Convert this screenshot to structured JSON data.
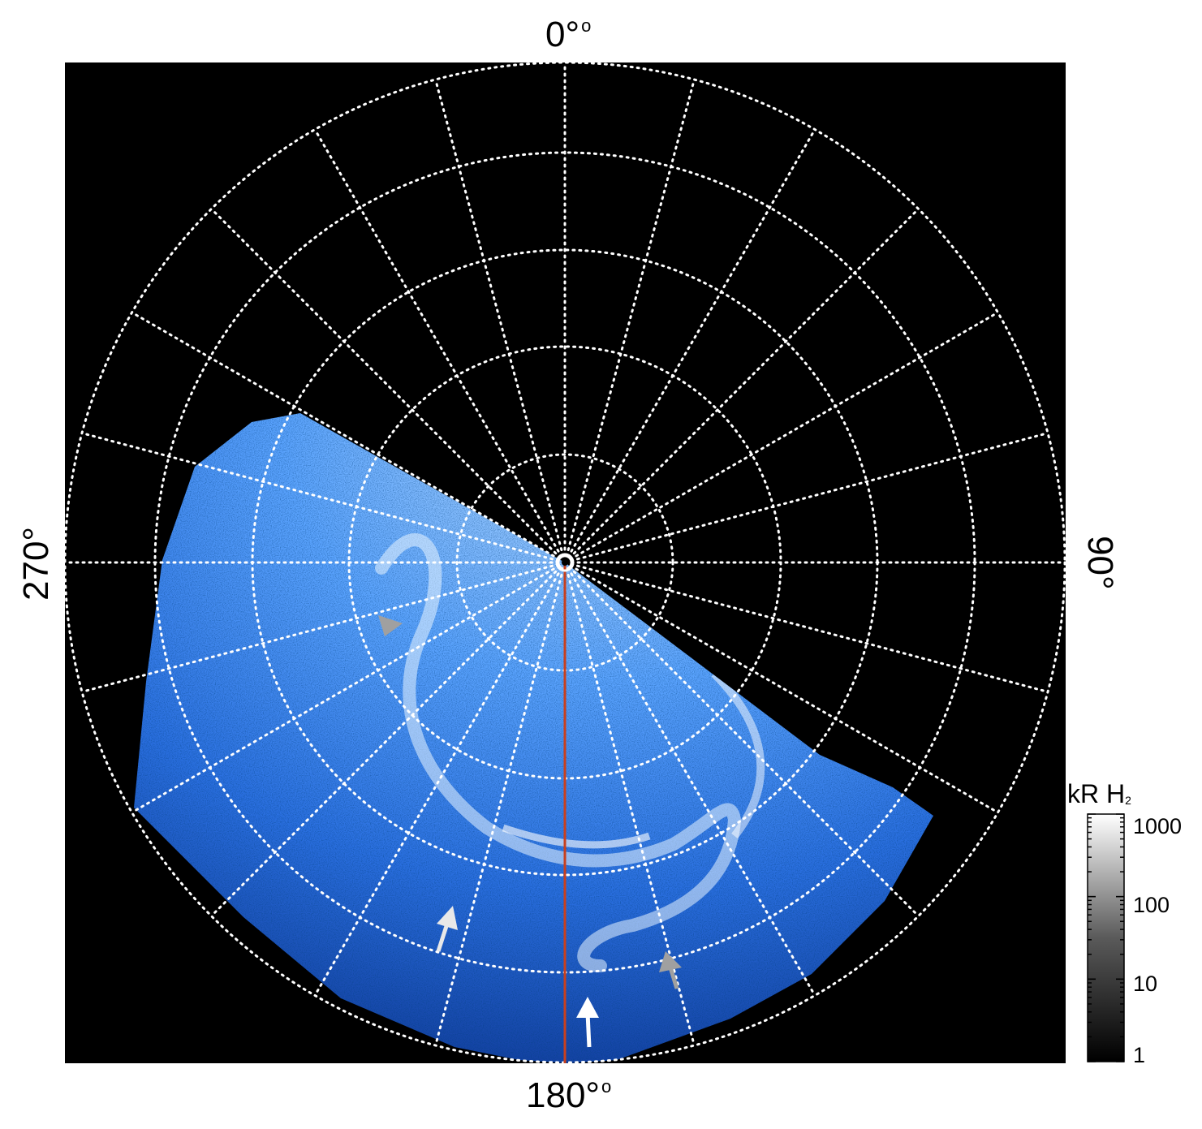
{
  "axis_labels": {
    "top": "0°",
    "bottom": "180°",
    "left": "270°",
    "right": "90°"
  },
  "colorbar": {
    "title_main": "kR H",
    "title_sub": "2",
    "ticks": [
      "1000",
      "100",
      "10",
      "1"
    ]
  },
  "colors": {
    "background": "#000000",
    "aurora": "#2f7df0",
    "grid": "#ffffff",
    "meridian_line": "#c8401e",
    "arrow_white": "#ffffff",
    "arrow_gray": "#a0a0a0"
  }
}
